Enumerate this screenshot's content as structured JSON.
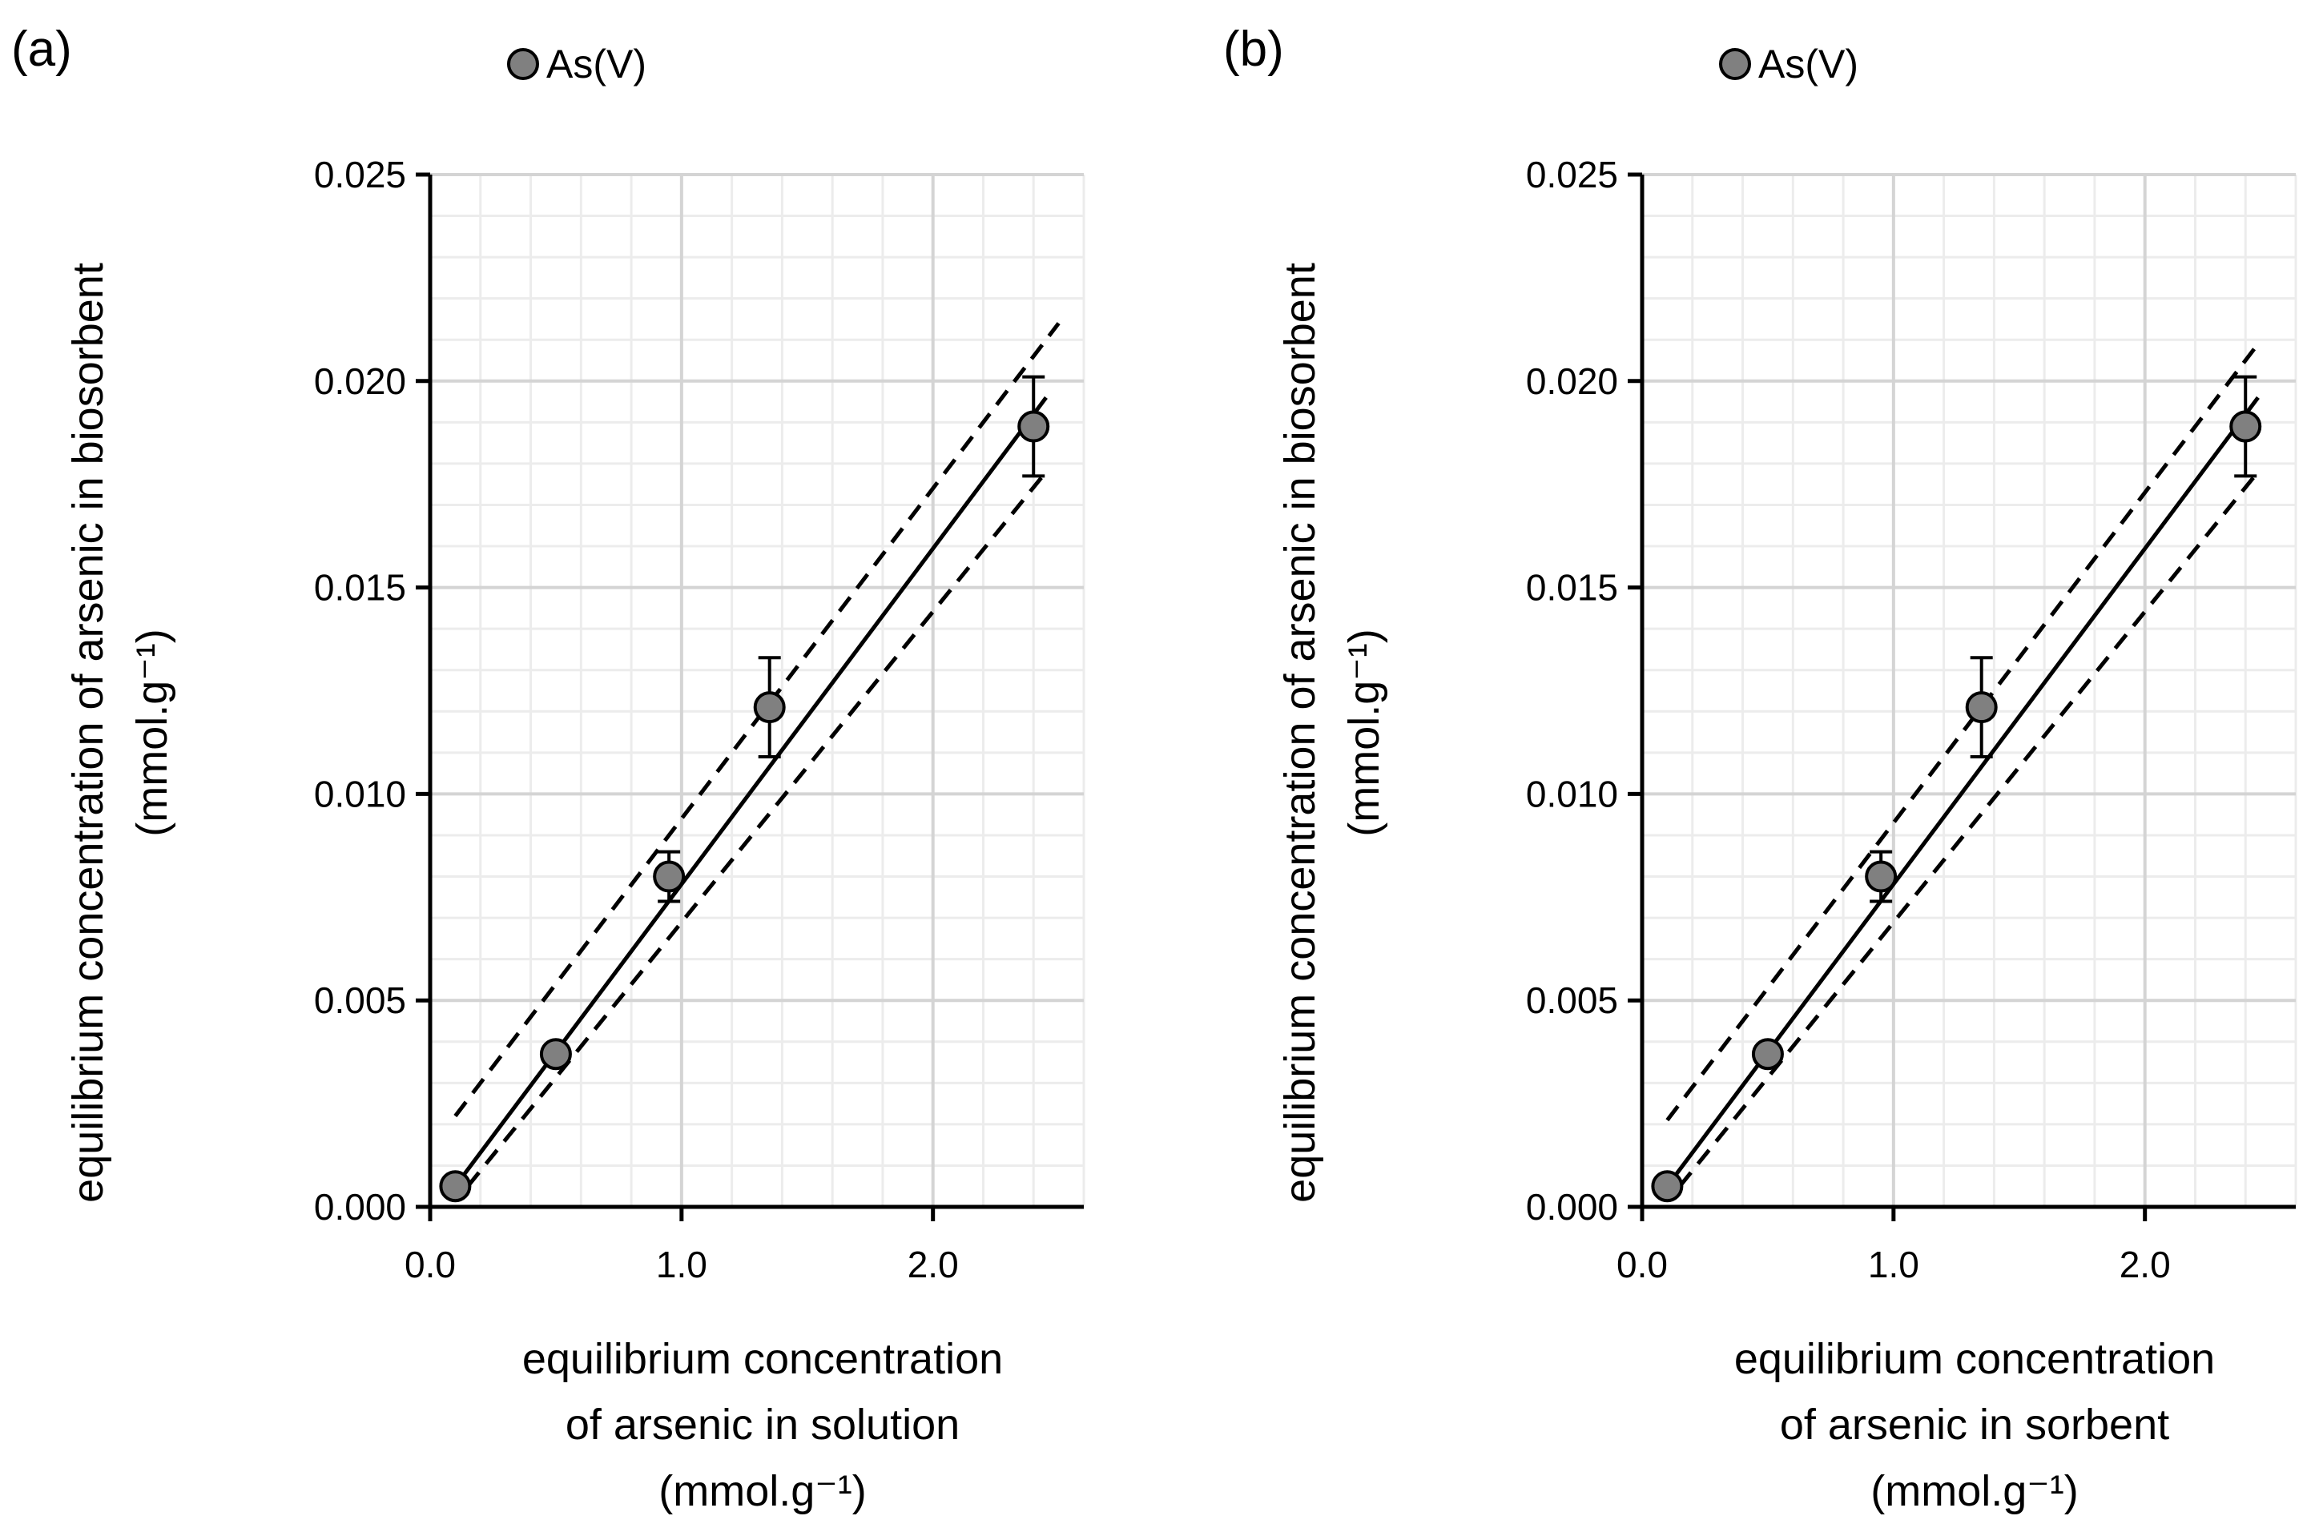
{
  "figure": {
    "panels": [
      {
        "label": "(a)",
        "legend": "As(V)"
      },
      {
        "label": "(b)",
        "legend": "As(V)"
      }
    ]
  },
  "chart_data": [
    {
      "type": "scatter",
      "title": "",
      "xlabel_lines": [
        "equilibrium concentration",
        "of arsenic in solution",
        "(mmol.g⁻¹)"
      ],
      "ylabel_lines": [
        "equilibrium concentration of arsenic in biosorbent",
        "(mmol.g⁻¹)"
      ],
      "xlim": [
        0,
        2.6
      ],
      "ylim": [
        0,
        0.025
      ],
      "x_ticks": [
        0.0,
        1.0,
        2.0
      ],
      "x_tick_labels": [
        "0.0",
        "1.0",
        "2.0"
      ],
      "y_ticks": [
        0,
        0.005,
        0.01,
        0.015,
        0.02,
        0.025
      ],
      "y_tick_labels": [
        "0.000",
        "0.005",
        "0.010",
        "0.015",
        "0.020",
        "0.025"
      ],
      "grid": true,
      "legend_position": "top-center",
      "series": [
        {
          "name": "As(V)",
          "marker_color": "#808080",
          "x": [
            0.1,
            0.5,
            0.95,
            1.35,
            2.4
          ],
          "y": [
            0.0005,
            0.0037,
            0.008,
            0.0121,
            0.0189
          ],
          "error": [
            null,
            null,
            0.0006,
            0.0012,
            0.0012
          ]
        }
      ],
      "fit_line": {
        "style": "solid",
        "x": [
          0.1,
          2.45
        ],
        "y": [
          0.0005,
          0.0196
        ]
      },
      "upper_bound": {
        "style": "dashed",
        "x": [
          0.1,
          2.5
        ],
        "y": [
          0.0022,
          0.0214
        ]
      },
      "lower_bound": {
        "style": "dashed",
        "x": [
          0.15,
          2.45
        ],
        "y": [
          0.0005,
          0.0178
        ]
      }
    },
    {
      "type": "scatter",
      "title": "",
      "xlabel_lines": [
        "equilibrium concentration",
        "of arsenic in sorbent",
        "(mmol.g⁻¹)"
      ],
      "ylabel_lines": [
        "equilibrium concentration of arsenic in biosorbent",
        "(mmol.g⁻¹)"
      ],
      "xlim": [
        0,
        2.6
      ],
      "ylim": [
        0,
        0.025
      ],
      "x_ticks": [
        0.0,
        1.0,
        2.0
      ],
      "x_tick_labels": [
        "0.0",
        "1.0",
        "2.0"
      ],
      "y_ticks": [
        0,
        0.005,
        0.01,
        0.015,
        0.02,
        0.025
      ],
      "y_tick_labels": [
        "0.000",
        "0.005",
        "0.010",
        "0.015",
        "0.020",
        "0.025"
      ],
      "grid": true,
      "legend_position": "top-center",
      "series": [
        {
          "name": "As(V)",
          "marker_color": "#808080",
          "x": [
            0.1,
            0.5,
            0.95,
            1.35,
            2.4
          ],
          "y": [
            0.0005,
            0.0037,
            0.008,
            0.0121,
            0.0189
          ],
          "error": [
            null,
            null,
            0.0006,
            0.0012,
            0.0012
          ]
        }
      ],
      "fit_line": {
        "style": "solid",
        "x": [
          0.1,
          2.45
        ],
        "y": [
          0.0005,
          0.0196
        ]
      },
      "upper_bound": {
        "style": "dashed",
        "x": [
          0.1,
          2.45
        ],
        "y": [
          0.0021,
          0.0209
        ]
      },
      "lower_bound": {
        "style": "dashed",
        "x": [
          0.15,
          2.45
        ],
        "y": [
          0.0005,
          0.0178
        ]
      }
    }
  ]
}
